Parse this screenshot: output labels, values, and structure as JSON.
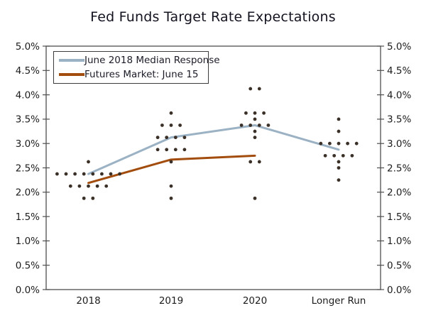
{
  "title": "Fed Funds Target Rate Expectations",
  "colors": {
    "median_line": "#9bb2c5",
    "futures_line": "#a24d0e",
    "dots": "#3a3027",
    "axis": "#4f4f4f",
    "text": "#1c1c1c"
  },
  "legend": {
    "items": [
      {
        "label": "June 2018 Median Response",
        "color": "#9bb2c5"
      },
      {
        "label": "Futures Market: June 15",
        "color": "#a24d0e"
      }
    ]
  },
  "chart_data": {
    "type": "scatter",
    "title": "Fed Funds Target Rate Expectations",
    "categories": [
      "2018",
      "2019",
      "2020",
      "Longer Run"
    ],
    "y_axis": {
      "min": 0,
      "max": 5,
      "step": 0.5,
      "tick_labels": [
        "0.0%",
        "0.5%",
        "1.0%",
        "1.5%",
        "2.0%",
        "2.5%",
        "3.0%",
        "3.5%",
        "4.0%",
        "4.5%",
        "5.0%"
      ],
      "sides": [
        "left",
        "right"
      ],
      "grid": false
    },
    "lines": [
      {
        "name": "June 2018 Median Response",
        "color": "#9bb2c5",
        "points": [
          {
            "category": "2018",
            "value": 2.375
          },
          {
            "category": "2019",
            "value": 3.125
          },
          {
            "category": "2020",
            "value": 3.375
          },
          {
            "category": "Longer Run",
            "value": 2.875
          }
        ]
      },
      {
        "name": "Futures Market: June 15",
        "color": "#a24d0e",
        "points": [
          {
            "category": "2018",
            "value": 2.19
          },
          {
            "category": "2019",
            "value": 2.67
          },
          {
            "category": "2020",
            "value": 2.75
          }
        ]
      }
    ],
    "dots": {
      "color": "#3a3027",
      "groups": [
        {
          "category": "2018",
          "value": 2.625,
          "count": 1
        },
        {
          "category": "2018",
          "value": 2.375,
          "count": 8
        },
        {
          "category": "2018",
          "value": 2.125,
          "count": 5
        },
        {
          "category": "2018",
          "value": 1.875,
          "count": 2
        },
        {
          "category": "2019",
          "value": 3.625,
          "count": 1
        },
        {
          "category": "2019",
          "value": 3.375,
          "count": 3
        },
        {
          "category": "2019",
          "value": 3.125,
          "count": 4
        },
        {
          "category": "2019",
          "value": 2.875,
          "count": 4
        },
        {
          "category": "2019",
          "value": 2.625,
          "count": 1
        },
        {
          "category": "2019",
          "value": 2.125,
          "count": 1
        },
        {
          "category": "2019",
          "value": 1.875,
          "count": 1
        },
        {
          "category": "2020",
          "value": 4.125,
          "count": 2
        },
        {
          "category": "2020",
          "value": 3.625,
          "count": 3
        },
        {
          "category": "2020",
          "value": 3.5,
          "count": 1
        },
        {
          "category": "2020",
          "value": 3.375,
          "count": 4
        },
        {
          "category": "2020",
          "value": 3.25,
          "count": 1
        },
        {
          "category": "2020",
          "value": 3.125,
          "count": 1
        },
        {
          "category": "2020",
          "value": 2.625,
          "count": 2
        },
        {
          "category": "2020",
          "value": 1.875,
          "count": 1
        },
        {
          "category": "Longer Run",
          "value": 3.5,
          "count": 1
        },
        {
          "category": "Longer Run",
          "value": 3.25,
          "count": 1
        },
        {
          "category": "Longer Run",
          "value": 3.0,
          "count": 5
        },
        {
          "category": "Longer Run",
          "value": 2.75,
          "count": 4
        },
        {
          "category": "Longer Run",
          "value": 2.625,
          "count": 1
        },
        {
          "category": "Longer Run",
          "value": 2.5,
          "count": 1
        },
        {
          "category": "Longer Run",
          "value": 2.25,
          "count": 1
        }
      ]
    }
  }
}
